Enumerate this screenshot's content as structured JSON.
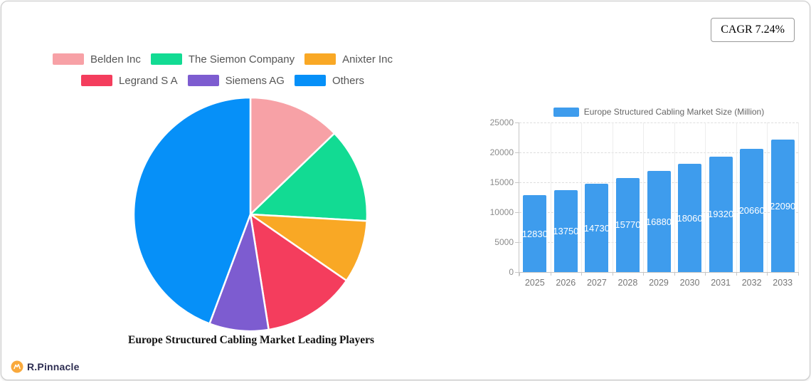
{
  "badge": {
    "label": "CAGR 7.24%"
  },
  "logo": {
    "text": "R.Pinnacle",
    "icon": "pinnacle-circle-icon",
    "icon_color": "#F9A93C",
    "text_color": "#2E2E52"
  },
  "chart_data": [
    {
      "type": "pie",
      "title": "Europe Structured Cabling Market Leading Players",
      "legend_position": "top",
      "unit": "percent-share",
      "slices": [
        {
          "label": "Belden Inc",
          "value": 12.8,
          "color": "#F7A1A6"
        },
        {
          "label": "The Siemon Company",
          "value": 13.1,
          "color": "#12DB93"
        },
        {
          "label": "Anixter Inc",
          "value": 8.7,
          "color": "#F9A825"
        },
        {
          "label": "Legrand S A",
          "value": 12.9,
          "color": "#F43D5D"
        },
        {
          "label": "Siemens AG",
          "value": 8.2,
          "color": "#7D5CD0"
        },
        {
          "label": "Others",
          "value": 44.3,
          "color": "#0690F8"
        }
      ]
    },
    {
      "type": "bar",
      "legend_label": "Europe Structured Cabling Market Size (Million)",
      "categories": [
        "2025",
        "2026",
        "2027",
        "2028",
        "2029",
        "2030",
        "2031",
        "2032",
        "2033"
      ],
      "values": [
        12830,
        13750,
        14730,
        15770,
        16880,
        18060,
        19320,
        20660,
        22090
      ],
      "bar_color": "#3E9CED",
      "ylim": [
        0,
        25000
      ],
      "yticks": [
        0,
        5000,
        10000,
        15000,
        20000,
        25000
      ],
      "grid": true,
      "legend_position": "top"
    }
  ]
}
